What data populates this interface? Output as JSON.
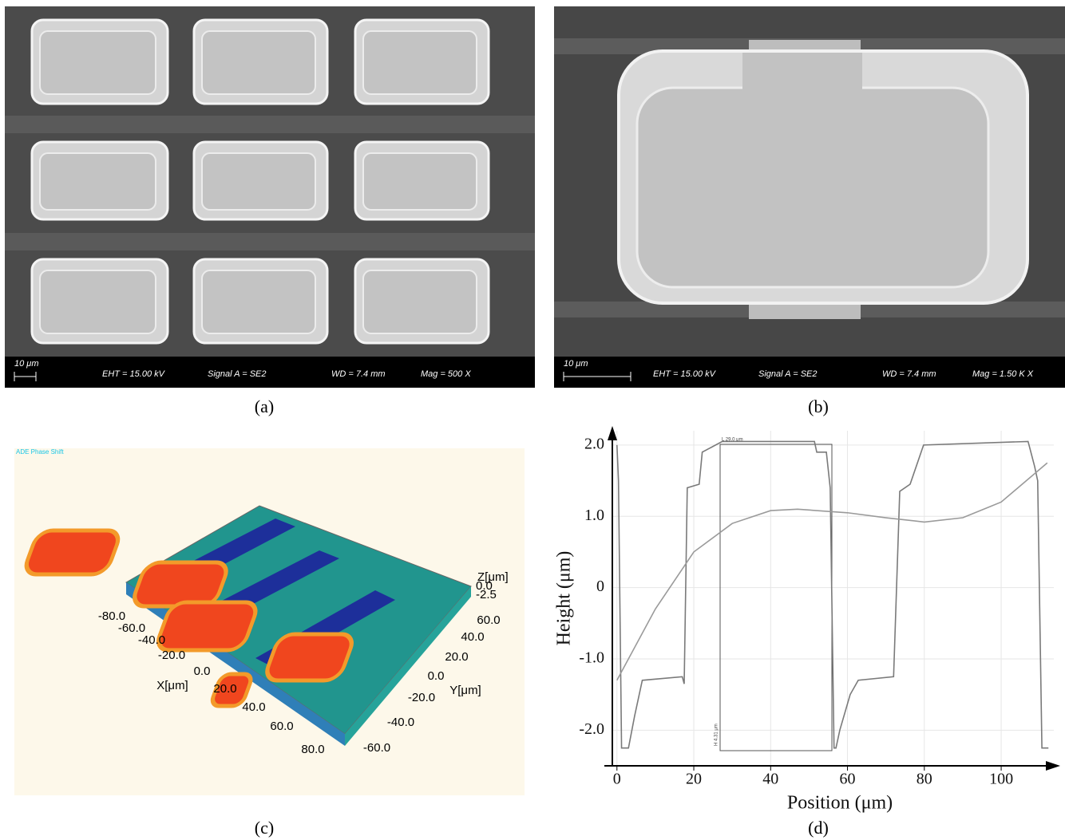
{
  "panels": {
    "a": {
      "caption": "(a)",
      "scale": "10 μm",
      "eht": "EHT = 15.00 kV",
      "signal": "Signal A = SE2",
      "wd": "WD =  7.4 mm",
      "mag": "Mag =   500 X"
    },
    "b": {
      "caption": "(b)",
      "scale": "10 μm",
      "eht": "EHT = 15.00 kV",
      "signal": "Signal A = SE2",
      "wd": "WD =  7.4 mm",
      "mag": "Mag =   1.50 K X"
    },
    "c": {
      "caption": "(c)",
      "title": "ADE Phase Shift",
      "z_label": "Z[μm]",
      "z_ticks": [
        "0.0",
        "-2.5"
      ],
      "x_label": "X[μm]",
      "x_ticks": [
        "-80.0",
        "-60.0",
        "-40.0",
        "-20.0",
        "0.0",
        "20.0",
        "40.0",
        "60.0",
        "80.0"
      ],
      "y_label": "Y[μm]",
      "y_ticks": [
        "60.0",
        "40.0",
        "20.0",
        "0.0",
        "-20.0",
        "-40.0",
        "-60.0"
      ]
    },
    "d": {
      "caption": "(d)"
    }
  },
  "chart_data": {
    "type": "line",
    "y_label": "Height (μm)",
    "x_label": "Position (μm)",
    "xlim": [
      -1.2,
      113.7
    ],
    "ylim": [
      -2.5,
      2.2
    ],
    "xticks": [
      0,
      20,
      40,
      60,
      80,
      100
    ],
    "yticks": [
      {
        "value": 2,
        "label": "2.0"
      },
      {
        "value": 1,
        "label": "1.0"
      },
      0,
      {
        "value": -1,
        "label": "-1.0"
      },
      {
        "value": -2,
        "label": "-2.0"
      }
    ],
    "grid": true,
    "annotations": [
      "L 29.0 μm",
      "H 4.31 μm"
    ],
    "series": [
      {
        "color": "#7a7a7a",
        "x": [
          0,
          0.4,
          1.2,
          3,
          4.6,
          6.6,
          17,
          17.5,
          18.3,
          21.4,
          22.2,
          27.4,
          51.4,
          52,
          54.5,
          55.5,
          56.5,
          57,
          58,
          60.7,
          62.8,
          72,
          73.6,
          76.3,
          79.8,
          107,
          108.7,
          109.5,
          110.6,
          112.3
        ],
        "values": [
          2.0,
          1.5,
          -2.25,
          -2.25,
          -1.8,
          -1.3,
          -1.25,
          -1.35,
          1.4,
          1.45,
          1.9,
          2.05,
          2.05,
          1.9,
          1.9,
          1.4,
          -2.25,
          -2.25,
          -2.0,
          -1.5,
          -1.3,
          -1.25,
          1.35,
          1.45,
          2.0,
          2.05,
          1.7,
          1.5,
          -2.25,
          -2.25
        ]
      },
      {
        "color": "#9a9a9a",
        "x": [
          0,
          10,
          20,
          30,
          40,
          47,
          60,
          70,
          80,
          90,
          100,
          112
        ],
        "values": [
          -1.3,
          -0.3,
          0.5,
          0.9,
          1.08,
          1.1,
          1.05,
          0.98,
          0.92,
          0.98,
          1.2,
          1.75
        ]
      }
    ]
  }
}
